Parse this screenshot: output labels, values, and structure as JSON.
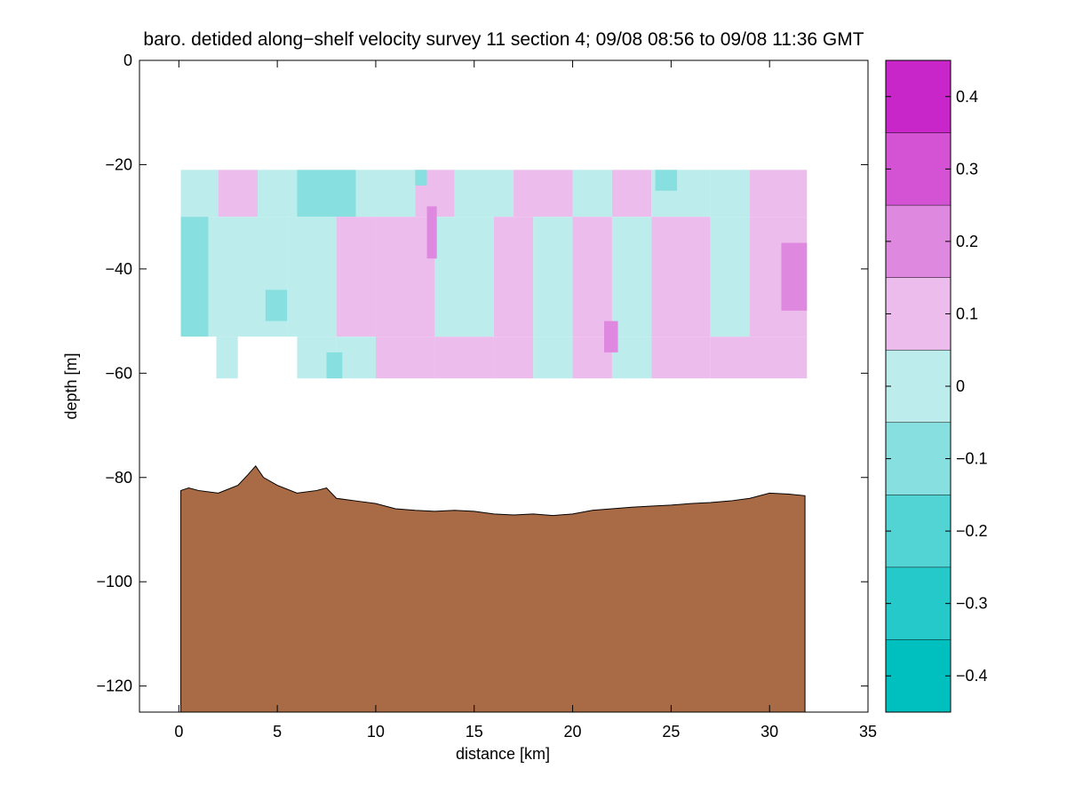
{
  "chart_data": [
    {
      "type": "contour-section",
      "title": "baro. detided along−shelf velocity survey 11 section 4; 09/08 08:56 to 09/08 11:36 GMT",
      "xlabel": "distance [km]",
      "ylabel": "depth [m]",
      "xlim": [
        -2,
        35
      ],
      "ylim": [
        -125,
        0
      ],
      "xticks": [
        0,
        5,
        10,
        15,
        20,
        25,
        30,
        35
      ],
      "yticks": [
        0,
        -20,
        -40,
        -60,
        -80,
        -100,
        -120
      ],
      "xtick_labels": [
        "0",
        "5",
        "10",
        "15",
        "20",
        "25",
        "30",
        "35"
      ],
      "ytick_labels": [
        "0",
        "−20",
        "−40",
        "−60",
        "−80",
        "−100",
        "−120"
      ],
      "grid": false,
      "data_region": {
        "x": [
          0.1,
          31.9
        ],
        "depth": [
          -21,
          -61
        ]
      },
      "velocity_cells": [
        {
          "x": [
            0.1,
            2
          ],
          "depth": [
            -21,
            -30
          ],
          "value": -0.05
        },
        {
          "x": [
            2,
            4
          ],
          "depth": [
            -21,
            -30
          ],
          "value": 0.05
        },
        {
          "x": [
            4,
            6
          ],
          "depth": [
            -21,
            -30
          ],
          "value": -0.05
        },
        {
          "x": [
            6,
            9
          ],
          "depth": [
            -21,
            -30
          ],
          "value": -0.15
        },
        {
          "x": [
            9,
            12
          ],
          "depth": [
            -21,
            -30
          ],
          "value": -0.05
        },
        {
          "x": [
            12,
            14
          ],
          "depth": [
            -21,
            -30
          ],
          "value": 0.05
        },
        {
          "x": [
            14,
            17
          ],
          "depth": [
            -21,
            -30
          ],
          "value": -0.05
        },
        {
          "x": [
            17,
            20
          ],
          "depth": [
            -21,
            -30
          ],
          "value": 0.05
        },
        {
          "x": [
            20,
            22
          ],
          "depth": [
            -21,
            -30
          ],
          "value": -0.05
        },
        {
          "x": [
            22,
            24
          ],
          "depth": [
            -21,
            -30
          ],
          "value": 0.05
        },
        {
          "x": [
            24,
            27
          ],
          "depth": [
            -21,
            -30
          ],
          "value": -0.05
        },
        {
          "x": [
            27,
            29
          ],
          "depth": [
            -21,
            -30
          ],
          "value": -0.05
        },
        {
          "x": [
            29,
            31.9
          ],
          "depth": [
            -21,
            -30
          ],
          "value": 0.05
        },
        {
          "x": [
            0.1,
            1.5
          ],
          "depth": [
            -30,
            -53
          ],
          "value": -0.15
        },
        {
          "x": [
            1.5,
            4
          ],
          "depth": [
            -30,
            -53
          ],
          "value": -0.05
        },
        {
          "x": [
            4,
            5.5
          ],
          "depth": [
            -30,
            -53
          ],
          "value": -0.05
        },
        {
          "x": [
            5.5,
            8
          ],
          "depth": [
            -30,
            -53
          ],
          "value": -0.05
        },
        {
          "x": [
            8,
            10
          ],
          "depth": [
            -30,
            -53
          ],
          "value": 0.05
        },
        {
          "x": [
            10,
            13
          ],
          "depth": [
            -30,
            -53
          ],
          "value": 0.05
        },
        {
          "x": [
            13,
            16
          ],
          "depth": [
            -30,
            -53
          ],
          "value": -0.05
        },
        {
          "x": [
            16,
            18
          ],
          "depth": [
            -30,
            -53
          ],
          "value": 0.05
        },
        {
          "x": [
            18,
            20
          ],
          "depth": [
            -30,
            -53
          ],
          "value": -0.05
        },
        {
          "x": [
            20,
            22
          ],
          "depth": [
            -30,
            -53
          ],
          "value": 0.05
        },
        {
          "x": [
            22,
            24
          ],
          "depth": [
            -30,
            -53
          ],
          "value": -0.05
        },
        {
          "x": [
            24,
            27
          ],
          "depth": [
            -30,
            -53
          ],
          "value": 0.05
        },
        {
          "x": [
            27,
            29
          ],
          "depth": [
            -30,
            -53
          ],
          "value": -0.05
        },
        {
          "x": [
            29,
            31.9
          ],
          "depth": [
            -30,
            -53
          ],
          "value": 0.05
        },
        {
          "x": [
            1.9,
            3
          ],
          "depth": [
            -53,
            -61
          ],
          "value": -0.05
        },
        {
          "x": [
            6,
            8
          ],
          "depth": [
            -53,
            -61
          ],
          "value": -0.05
        },
        {
          "x": [
            8,
            10
          ],
          "depth": [
            -53,
            -61
          ],
          "value": -0.05
        },
        {
          "x": [
            10,
            13
          ],
          "depth": [
            -53,
            -61
          ],
          "value": 0.05
        },
        {
          "x": [
            13,
            16
          ],
          "depth": [
            -53,
            -61
          ],
          "value": 0.05
        },
        {
          "x": [
            16,
            18
          ],
          "depth": [
            -53,
            -61
          ],
          "value": 0.05
        },
        {
          "x": [
            18,
            20
          ],
          "depth": [
            -53,
            -61
          ],
          "value": -0.05
        },
        {
          "x": [
            20,
            22
          ],
          "depth": [
            -53,
            -61
          ],
          "value": 0.05
        },
        {
          "x": [
            22,
            24
          ],
          "depth": [
            -53,
            -61
          ],
          "value": -0.05
        },
        {
          "x": [
            24,
            27
          ],
          "depth": [
            -53,
            -61
          ],
          "value": 0.05
        },
        {
          "x": [
            27,
            31.9
          ],
          "depth": [
            -53,
            -61
          ],
          "value": 0.05
        },
        {
          "x": [
            12.6,
            13.1
          ],
          "depth": [
            -28,
            -38
          ],
          "value": 0.15
        },
        {
          "x": [
            21.6,
            22.3
          ],
          "depth": [
            -50,
            -56
          ],
          "value": 0.15
        },
        {
          "x": [
            30.6,
            31.9
          ],
          "depth": [
            -35,
            -48
          ],
          "value": 0.15
        },
        {
          "x": [
            7.5,
            8.3
          ],
          "depth": [
            -56,
            -61
          ],
          "value": -0.15
        },
        {
          "x": [
            4.4,
            5.5
          ],
          "depth": [
            -44,
            -50
          ],
          "value": -0.15
        },
        {
          "x": [
            12.0,
            12.6
          ],
          "depth": [
            -21,
            -24
          ],
          "value": -0.15
        },
        {
          "x": [
            24.2,
            25.3
          ],
          "depth": [
            -21,
            -25
          ],
          "value": -0.15
        }
      ],
      "masked_gaps": [
        {
          "x": [
            0.1,
            1.9
          ],
          "depth": [
            -53,
            -61
          ]
        },
        {
          "x": [
            3,
            6
          ],
          "depth": [
            -53,
            -61
          ]
        }
      ],
      "bathymetry": {
        "x": [
          0.1,
          0.5,
          1.0,
          2.0,
          3.0,
          3.5,
          3.9,
          4.3,
          5.0,
          6.0,
          7.0,
          7.5,
          8.0,
          9.0,
          10.0,
          11.0,
          12.0,
          13.0,
          14.0,
          15.0,
          16.0,
          17.0,
          18.0,
          19.0,
          20.0,
          21.0,
          22.0,
          23.0,
          24.0,
          25.0,
          26.0,
          27.0,
          28.0,
          29.0,
          30.0,
          31.0,
          31.8
        ],
        "depth": [
          -82.5,
          -82,
          -82.5,
          -83,
          -81.5,
          -79.5,
          -77.8,
          -80,
          -81.5,
          -83,
          -82.5,
          -82,
          -84,
          -84.5,
          -85,
          -86,
          -86.3,
          -86.5,
          -86.3,
          -86.5,
          -87,
          -87.2,
          -87.0,
          -87.3,
          -87.0,
          -86.3,
          -86.0,
          -85.7,
          -85.5,
          -85.3,
          -85.0,
          -84.8,
          -84.5,
          -84.0,
          -83.0,
          -83.2,
          -83.5
        ]
      },
      "colorbar": {
        "levels": [
          -0.45,
          -0.35,
          -0.25,
          -0.15,
          -0.05,
          0.05,
          0.15,
          0.25,
          0.35,
          0.45
        ],
        "colors": [
          "#00bfbf",
          "#26c9c9",
          "#53d4d4",
          "#88dfdf",
          "#bcecec",
          "#ecbcec",
          "#df88df",
          "#d453d4",
          "#c926c9"
        ],
        "ticks": [
          -0.4,
          -0.3,
          -0.2,
          -0.1,
          0,
          0.1,
          0.2,
          0.3,
          0.4
        ],
        "tick_labels": [
          "−0.4",
          "−0.3",
          "−0.2",
          "−0.1",
          "0",
          "0.1",
          "0.2",
          "0.3",
          "0.4"
        ]
      },
      "colors": {
        "bathymetry": "#a96b46",
        "frame": "#000000"
      }
    }
  ]
}
